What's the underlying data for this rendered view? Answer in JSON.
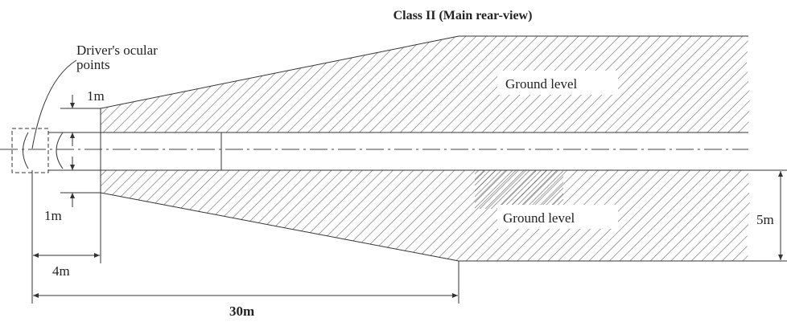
{
  "title": "Class II (Main rear-view)",
  "ocular_label": [
    "Driver's ocular",
    "points"
  ],
  "regions": [
    {
      "label": "Ground level"
    },
    {
      "label": "Ground level"
    }
  ],
  "dimensions": {
    "upper_offset": "1m",
    "lower_offset": "1m",
    "near_distance": "4m",
    "far_distance": "30m",
    "width": "5m"
  }
}
